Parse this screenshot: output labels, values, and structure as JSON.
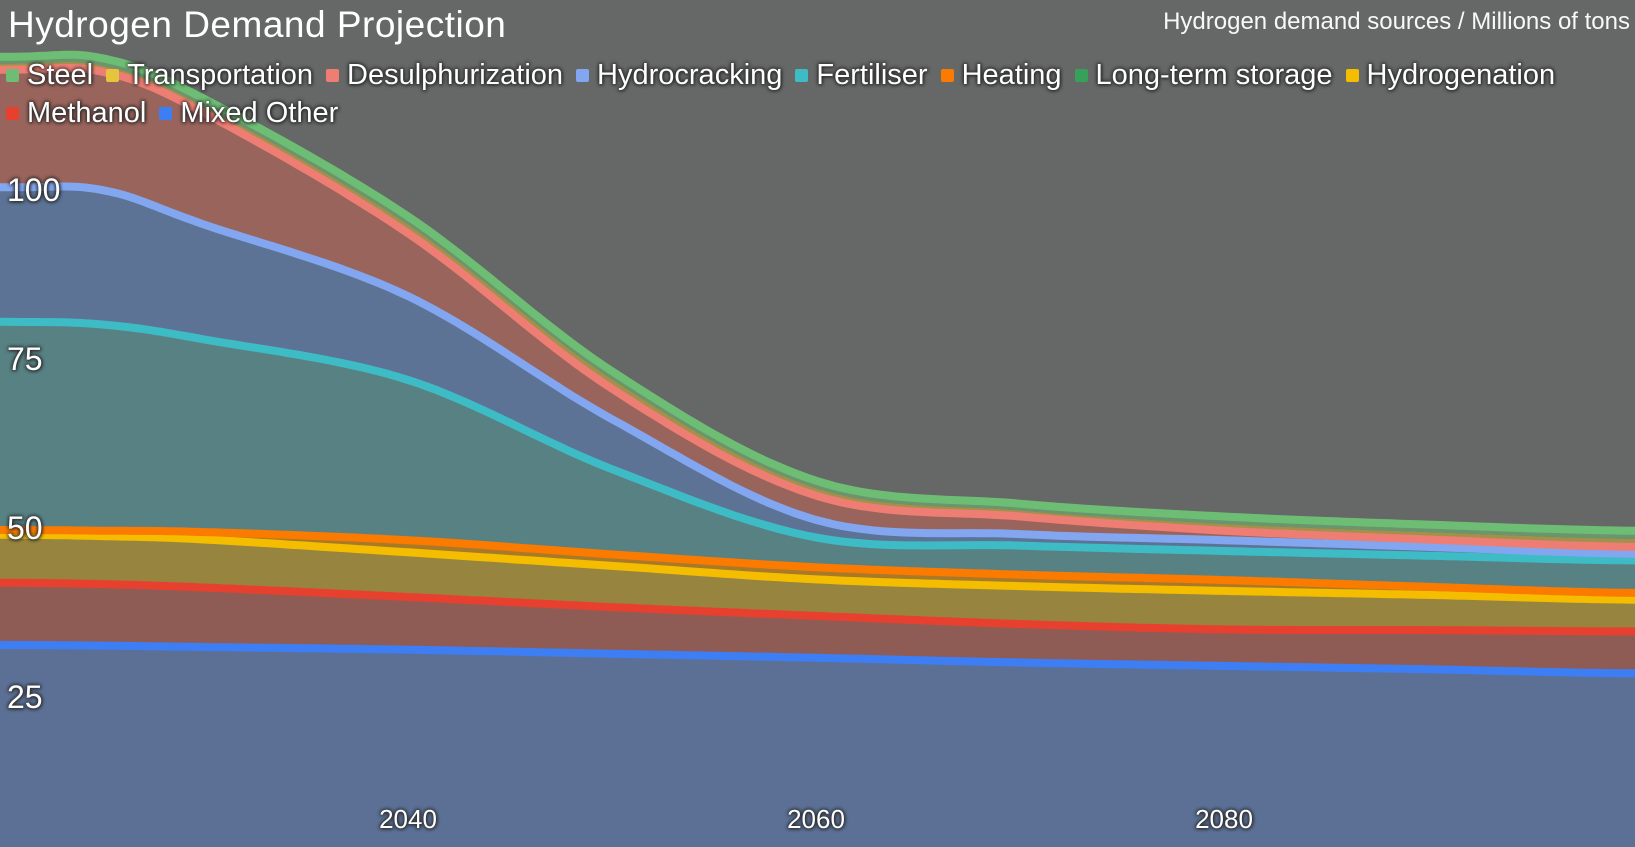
{
  "header": {
    "title": "Hydrogen Demand Projection",
    "subtitle": "Hydrogen demand sources / Millions of tons"
  },
  "colors": {
    "background": "#666767",
    "title_text": "#ffffff",
    "subtitle_text": "#f8f8f8",
    "tick_text": "#ffffff"
  },
  "chart_data": {
    "type": "area",
    "stacking": "normal",
    "title": "Hydrogen Demand Projection",
    "subtitle": "Hydrogen demand sources / Millions of tons",
    "unit": "Millions of tons",
    "grid": false,
    "legend_position": "top-left",
    "xlim": [
      2020,
      2100.2
    ],
    "ylim_visible": [
      2.8,
      128.2
    ],
    "x": [
      2020,
      2025,
      2030,
      2040,
      2050,
      2060,
      2070,
      2080,
      2090,
      2100
    ],
    "x_tick_values": [
      2040,
      2060,
      2080
    ],
    "x_tick_labels": [
      "2040",
      "2060",
      "2080"
    ],
    "y_tick_values": [
      100,
      75,
      50,
      25
    ],
    "y_tick_labels": [
      "100",
      "75",
      "50",
      "25"
    ],
    "series": [
      {
        "name": "Steel",
        "color": "#6ebd74",
        "fill": "#6a966e",
        "values": [
          1.0,
          1.1,
          1.1,
          1.2,
          1.2,
          1.1,
          1.0,
          1.1,
          1.1,
          1.2
        ]
      },
      {
        "name": "Transportation",
        "color": "#e5c43e",
        "fill": "#a2914b",
        "line_visible": false,
        "values": [
          0.9,
          0.9,
          1.0,
          1.3,
          1.4,
          1.1,
          0.9,
          1.0,
          1.1,
          1.2
        ]
      },
      {
        "name": "Desulphurization",
        "color": "#ee7d73",
        "fill": "#99645c",
        "values": [
          17.4,
          17.5,
          16.5,
          9.3,
          4.5,
          3.6,
          2.6,
          1.4,
          1.1,
          1.0
        ]
      },
      {
        "name": "Hydrocracking",
        "color": "#82a7f0",
        "fill": "#5c7396",
        "values": [
          19.9,
          19.9,
          17.0,
          12.4,
          7.4,
          2.6,
          1.7,
          1.6,
          1.3,
          1.0
        ]
      },
      {
        "name": "Fertiliser",
        "color": "#3ebcc5",
        "fill": "#588184",
        "values": [
          30.8,
          30.5,
          28.5,
          23.7,
          12.6,
          4.4,
          4.3,
          4.3,
          4.6,
          4.8
        ]
      },
      {
        "name": "Heating",
        "color": "#fb7a00",
        "fill": "#a87a28",
        "values": [
          0.7,
          0.8,
          1.1,
          1.8,
          1.7,
          1.8,
          1.7,
          1.6,
          1.2,
          1.0
        ]
      },
      {
        "name": "Long-term storage",
        "color": "#37a159",
        "fill": "#5f9668",
        "line_visible": false,
        "values": [
          0,
          0,
          0,
          0,
          0,
          0,
          0,
          0,
          0,
          0
        ]
      },
      {
        "name": "Hydrogenation",
        "color": "#f5bd00",
        "fill": "#97853f",
        "values": [
          7.1,
          7.1,
          7.1,
          6.6,
          6.1,
          5.4,
          5.6,
          5.7,
          5.2,
          4.7
        ]
      },
      {
        "name": "Methanol",
        "color": "#e8402f",
        "fill": "#8e5c54",
        "values": [
          9.2,
          9.1,
          8.8,
          7.8,
          6.9,
          6.2,
          5.7,
          5.4,
          5.8,
          6.2
        ]
      },
      {
        "name": "Mixed Other",
        "color": "#3e7ef5",
        "fill": "#5b7094",
        "values": [
          32.7,
          32.6,
          32.4,
          32.0,
          31.4,
          30.8,
          30.1,
          29.6,
          29.1,
          28.5
        ]
      }
    ]
  }
}
